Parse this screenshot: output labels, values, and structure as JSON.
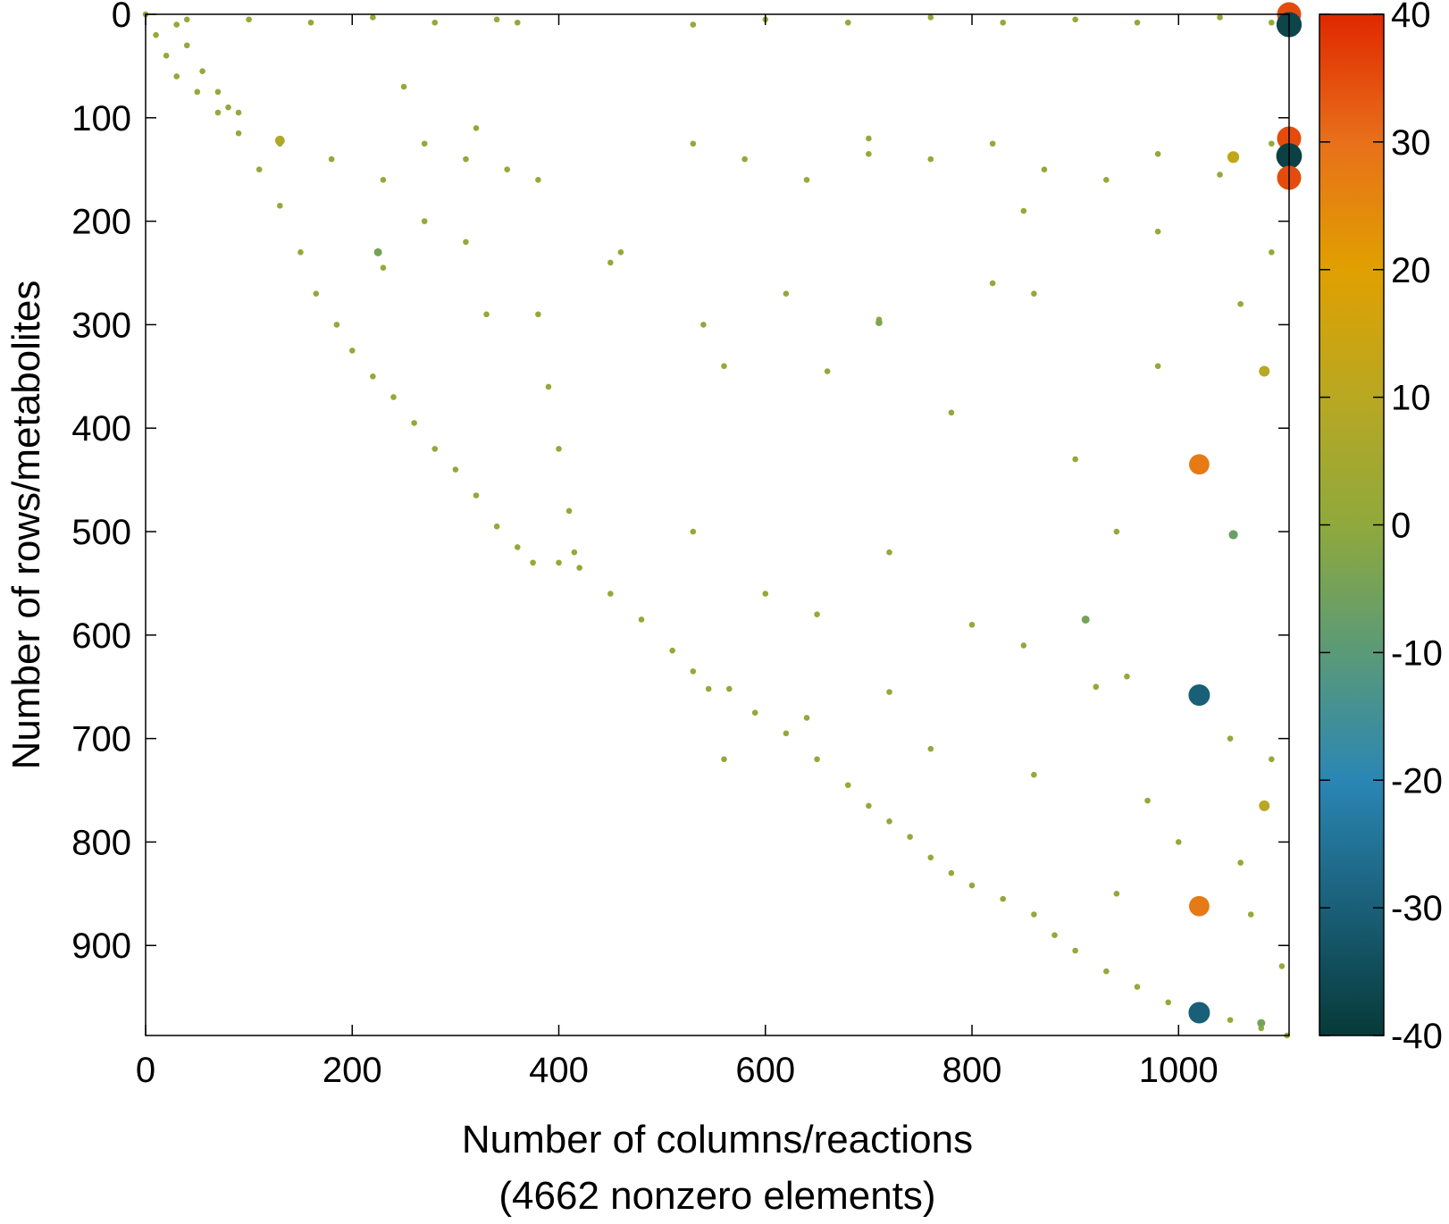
{
  "chart_data": {
    "type": "scatter",
    "xlabel": [
      "Number of columns/reactions",
      "(4662 nonzero elements)"
    ],
    "ylabel": "Number of rows/metabolites",
    "xlim": [
      0,
      1107
    ],
    "ylim": [
      0,
      987
    ],
    "y_inverted": true,
    "xticks": [
      0,
      200,
      400,
      600,
      800,
      1000
    ],
    "yticks": [
      0,
      100,
      200,
      300,
      400,
      500,
      600,
      700,
      800,
      900
    ],
    "colorbar": {
      "lim": [
        -40,
        40
      ],
      "ticks": [
        -40,
        -30,
        -20,
        -10,
        0,
        10,
        20,
        30,
        40
      ],
      "colors": [
        "#073a38",
        "#1a5f78",
        "#2a86b4",
        "#5a9a78",
        "#8fa93c",
        "#b8a822",
        "#e0a000",
        "#e8701a",
        "#e02800"
      ]
    },
    "x": [
      0,
      10,
      20,
      30,
      50,
      70,
      90,
      110,
      130,
      150,
      165,
      185,
      200,
      220,
      240,
      260,
      280,
      300,
      320,
      340,
      360,
      375,
      400,
      420,
      450,
      480,
      510,
      530,
      545,
      565,
      590,
      620,
      650,
      680,
      700,
      720,
      740,
      760,
      780,
      800,
      830,
      860,
      880,
      900,
      930,
      960,
      990,
      1020,
      1050,
      1080,
      1105,
      30,
      40,
      55,
      70,
      80,
      90,
      380,
      390,
      400,
      410,
      415,
      40,
      100,
      160,
      220,
      280,
      340,
      360,
      530,
      600,
      680,
      760,
      830,
      900,
      960,
      1040,
      1090,
      130,
      180,
      230,
      270,
      310,
      350,
      530,
      580,
      640,
      700,
      760,
      820,
      870,
      930,
      980,
      1040,
      1090,
      230,
      270,
      310,
      330,
      460,
      540,
      560,
      620,
      660,
      710,
      780,
      820,
      860,
      900,
      940,
      980,
      1060,
      1090,
      530,
      600,
      650,
      720,
      800,
      850,
      950,
      1050,
      1090,
      560,
      640,
      720,
      760,
      860,
      920,
      970,
      1000,
      1060,
      1070,
      940,
      1100,
      380,
      320,
      250,
      450,
      700,
      850,
      980,
      1107,
      1107,
      1107,
      1107,
      1107,
      1020,
      1020,
      1020,
      1020,
      1053,
      1053,
      1083,
      1083,
      1080,
      910,
      710,
      130,
      225
    ],
    "y": [
      0,
      20,
      40,
      60,
      75,
      95,
      115,
      150,
      185,
      230,
      270,
      300,
      325,
      350,
      370,
      395,
      420,
      440,
      465,
      495,
      515,
      530,
      530,
      535,
      560,
      585,
      615,
      635,
      652,
      652,
      675,
      695,
      720,
      745,
      765,
      780,
      795,
      815,
      830,
      842,
      855,
      870,
      890,
      905,
      925,
      940,
      955,
      965,
      972,
      980,
      987,
      10,
      30,
      55,
      75,
      90,
      95,
      290,
      360,
      420,
      480,
      520,
      5,
      5,
      8,
      3,
      8,
      5,
      8,
      10,
      5,
      8,
      3,
      8,
      5,
      8,
      3,
      8,
      125,
      140,
      160,
      125,
      140,
      150,
      125,
      140,
      160,
      135,
      140,
      125,
      150,
      160,
      135,
      155,
      125,
      245,
      200,
      220,
      290,
      230,
      300,
      340,
      270,
      345,
      295,
      385,
      260,
      270,
      430,
      500,
      340,
      280,
      230,
      500,
      560,
      580,
      520,
      590,
      610,
      640,
      700,
      720,
      720,
      680,
      655,
      710,
      735,
      650,
      760,
      800,
      820,
      870,
      850,
      920,
      160,
      110,
      70,
      240,
      120,
      190,
      210,
      0,
      10,
      120,
      137,
      158,
      435,
      658,
      862,
      965,
      138,
      503,
      345,
      765,
      975,
      585,
      298,
      122,
      230
    ],
    "values": [
      1,
      1,
      1,
      1,
      1,
      1,
      1,
      1,
      1,
      1,
      1,
      1,
      1,
      1,
      1,
      1,
      1,
      1,
      1,
      1,
      1,
      1,
      1,
      1,
      1,
      1,
      1,
      1,
      1,
      1,
      1,
      1,
      1,
      1,
      1,
      1,
      1,
      1,
      1,
      1,
      1,
      1,
      1,
      1,
      1,
      1,
      1,
      1,
      1,
      1,
      1,
      1,
      1,
      1,
      1,
      1,
      1,
      1,
      1,
      1,
      1,
      1,
      1,
      1,
      1,
      1,
      1,
      1,
      1,
      1,
      1,
      1,
      1,
      1,
      1,
      1,
      1,
      1,
      1,
      1,
      1,
      1,
      1,
      1,
      1,
      1,
      1,
      1,
      1,
      1,
      1,
      1,
      1,
      1,
      1,
      1,
      1,
      1,
      1,
      1,
      1,
      1,
      1,
      1,
      1,
      1,
      1,
      1,
      1,
      1,
      1,
      1,
      1,
      1,
      1,
      1,
      1,
      1,
      1,
      1,
      1,
      1,
      1,
      1,
      1,
      1,
      1,
      1,
      1,
      1,
      1,
      1,
      1,
      1,
      1,
      1,
      1,
      1,
      1,
      1,
      1,
      35,
      -37,
      35,
      -38,
      35,
      28,
      -30,
      28,
      -30,
      12,
      -7,
      10,
      10,
      -5,
      -5,
      -3,
      8,
      -5
    ]
  }
}
